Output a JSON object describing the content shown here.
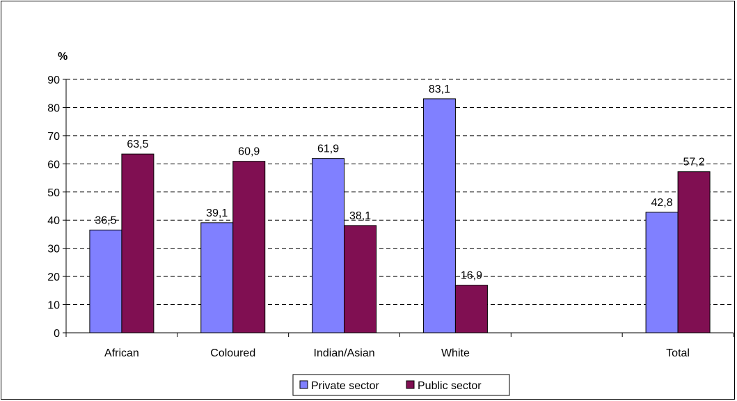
{
  "chart_data": {
    "type": "bar",
    "title": "",
    "xlabel": "",
    "ylabel": "%",
    "ylim": [
      0,
      90
    ],
    "yticks": [
      0,
      10,
      20,
      30,
      40,
      50,
      60,
      70,
      80,
      90
    ],
    "grid": true,
    "legend_position": "bottom",
    "categories": [
      "African",
      "Coloured",
      "Indian/Asian",
      "White",
      "",
      "Total"
    ],
    "series": [
      {
        "name": "Private sector",
        "color": "#8080ff",
        "values": [
          36.5,
          39.1,
          61.9,
          83.1,
          null,
          42.8
        ],
        "labels": [
          "36,5",
          "39,1",
          "61,9",
          "83,1",
          "",
          "42,8"
        ]
      },
      {
        "name": "Public sector",
        "color": "#800f52",
        "values": [
          63.5,
          60.9,
          38.1,
          16.9,
          null,
          57.2
        ],
        "labels": [
          "63,5",
          "60,9",
          "38,1",
          "16,9",
          "",
          "57,2"
        ]
      }
    ]
  }
}
